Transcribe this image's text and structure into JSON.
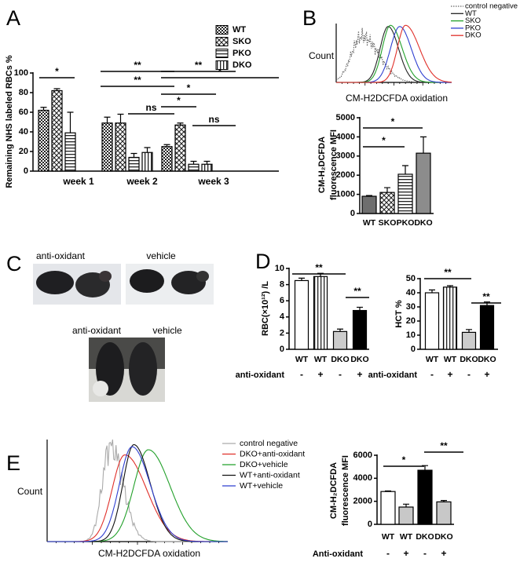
{
  "chart_data": [
    {
      "panel": "A",
      "type": "bar",
      "ylabel": "Remaining NHS labeled RBCs %",
      "categories": [
        "week 1",
        "week 2",
        "week 3"
      ],
      "series": [
        {
          "name": "WT",
          "fill": "dense-check",
          "values": [
            62,
            49,
            25
          ],
          "errors": [
            3,
            6,
            2
          ]
        },
        {
          "name": "SKO",
          "fill": "check",
          "values": [
            82,
            49,
            47
          ],
          "errors": [
            2,
            9,
            2
          ]
        },
        {
          "name": "PKO",
          "fill": "hstripe",
          "values": [
            39,
            14,
            7
          ],
          "errors": [
            21,
            4,
            3
          ]
        },
        {
          "name": "DKO",
          "fill": "vstripe",
          "values": [
            null,
            19,
            7
          ],
          "errors": [
            null,
            5,
            3
          ]
        }
      ],
      "ylim": [
        0,
        100
      ],
      "yticks": [
        0,
        20,
        40,
        60,
        80,
        100
      ],
      "annotations": [
        "*",
        "**",
        "**",
        "ns",
        "**",
        "*",
        "*",
        "*",
        "ns"
      ]
    },
    {
      "panel": "B",
      "type": "flow",
      "ylabel": "Count",
      "xlabel": "CM-H2DCFDA oxidation",
      "series": [
        {
          "name": "control negative",
          "color": "#666666",
          "line_style": "dotted"
        },
        {
          "name": "WT",
          "color": "#222222"
        },
        {
          "name": "SKO",
          "color": "#22a02a"
        },
        {
          "name": "PKO",
          "color": "#2f3fd0"
        },
        {
          "name": "DKO",
          "color": "#e0302a"
        }
      ]
    },
    {
      "type": "bar",
      "ylabel": [
        "CM-H₂DCFDA",
        "fluorescence MFI"
      ],
      "categories": [
        "WT",
        "SKO",
        "PKO",
        "DKO"
      ],
      "values": [
        900,
        1100,
        2050,
        3150
      ],
      "errors": [
        40,
        250,
        450,
        850
      ],
      "fills": [
        "#6e6e6e",
        "check",
        "hstripe",
        "#8c8c8c"
      ],
      "ylim": [
        0,
        5000
      ],
      "yticks": [
        0,
        1000,
        2000,
        3000,
        4000,
        5000
      ],
      "annotations": [
        "*",
        "*"
      ]
    },
    {
      "panel": "D",
      "type": "bar",
      "ylabel": "RBC(×10¹²) /L",
      "categories": [
        "WT",
        "WT",
        "DKO",
        "DKO"
      ],
      "treatment": [
        "-",
        "+",
        "-",
        "+"
      ],
      "treatment_label": "anti-oxidant",
      "values": [
        8.5,
        9.0,
        2.2,
        4.8
      ],
      "errors": [
        0.3,
        0.4,
        0.3,
        0.4
      ],
      "fills": [
        "#ffffff",
        "vstripe",
        "#cccccc",
        "#000000"
      ],
      "ylim": [
        0,
        10
      ],
      "yticks": [
        0,
        2,
        4,
        6,
        8,
        10
      ],
      "annotations": [
        "**",
        "**"
      ]
    },
    {
      "type": "bar",
      "ylabel": "HCT %",
      "categories": [
        "WT",
        "WT",
        "DKO",
        "DKO"
      ],
      "treatment": [
        "-",
        "+",
        "-",
        "+"
      ],
      "treatment_label": "anti-oxidant",
      "values": [
        40,
        44,
        12,
        31
      ],
      "errors": [
        2,
        1,
        2,
        2.5
      ],
      "fills": [
        "#ffffff",
        "vstripe",
        "#cccccc",
        "#000000"
      ],
      "ylim": [
        0,
        50
      ],
      "yticks": [
        0,
        10,
        20,
        30,
        40,
        50
      ],
      "annotations": [
        "**",
        "**"
      ]
    },
    {
      "panel": "E",
      "type": "flow",
      "ylabel": "Count",
      "xlabel": "CM-H2DCFDA oxidation",
      "series": [
        {
          "name": "control negative",
          "color": "#aaaaaa"
        },
        {
          "name": "DKO+anti-oxidant",
          "color": "#e0302a"
        },
        {
          "name": "DKO+vehicle",
          "color": "#22a02a"
        },
        {
          "name": "WT+anti-oxidant",
          "color": "#111111"
        },
        {
          "name": "WT+vehicle",
          "color": "#2f3fd0"
        }
      ]
    },
    {
      "type": "bar",
      "ylabel": [
        "CM-H₂DCFDA",
        "fluorescence MFI"
      ],
      "categories": [
        "WT",
        "WT",
        "DKO",
        "DKO"
      ],
      "treatment": [
        "-",
        "+",
        "-",
        "+"
      ],
      "treatment_label": "Anti-oxidant",
      "values": [
        2850,
        1500,
        4700,
        1950
      ],
      "errors": [
        50,
        250,
        400,
        120
      ],
      "fills": [
        "#ffffff",
        "#c8c8c8",
        "#000000",
        "#c8c8c8"
      ],
      "ylim": [
        0,
        6000
      ],
      "yticks": [
        0,
        2000,
        4000,
        6000
      ],
      "annotations": [
        "*",
        "**"
      ]
    }
  ],
  "panel_c": {
    "panel": "C",
    "top_labels": [
      "anti-oxidant",
      "vehicle"
    ],
    "bottom_labels": [
      "anti-oxidant",
      "vehicle"
    ]
  }
}
